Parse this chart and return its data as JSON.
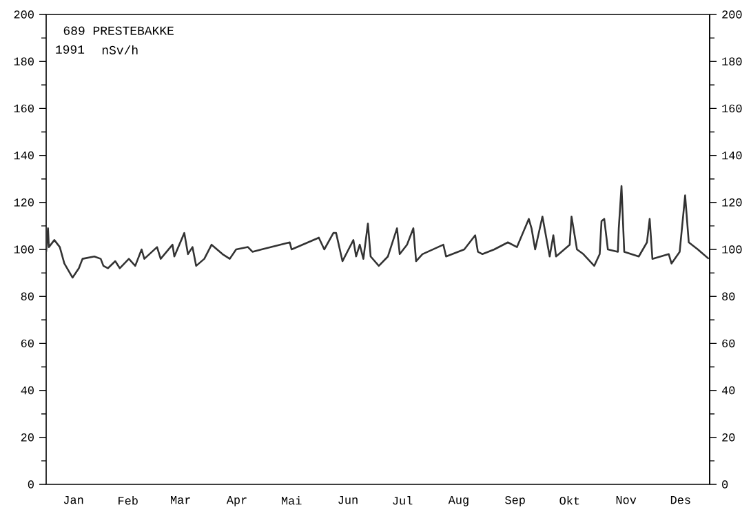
{
  "chart_data": {
    "type": "line",
    "title": "689 PRESTEBAKKE",
    "ylabel": "nSv/h",
    "annotations": [
      "1991"
    ],
    "x": [
      "1991-01-01T00:00",
      "1991-01-02T00:00",
      "1991-01-02T12:00",
      "1991-01-05T12:00",
      "1991-01-08T12:00",
      "1991-01-11T00:00",
      "1991-01-15T12:00",
      "1991-01-19T00:00",
      "1991-01-21T00:00",
      "1991-01-27T12:00",
      "1991-01-31T00:00",
      "1991-02-01T12:00",
      "1991-02-04T00:00",
      "1991-02-08T00:00",
      "1991-02-10T12:00",
      "1991-02-15T12:00",
      "1991-02-19T00:00",
      "1991-02-22T12:00",
      "1991-02-24T00:00",
      "1991-03-03T00:00",
      "1991-03-05T00:00",
      "1991-03-11T12:00",
      "1991-03-12T12:00",
      "1991-03-18T00:00",
      "1991-03-20T00:00",
      "1991-03-22T12:00",
      "1991-03-24T12:00",
      "1991-03-29T00:00",
      "1991-04-02T00:00",
      "1991-04-05T00:00",
      "1991-04-08T00:00",
      "1991-04-12T00:00",
      "1991-04-15T12:00",
      "1991-04-22T00:00",
      "1991-04-24T12:00",
      "1991-04-29T12:00",
      "1991-05-15T00:00",
      "1991-05-16T00:00",
      "1991-05-31T00:00",
      "1991-06-03T00:00",
      "1991-06-08T00:00",
      "1991-06-09T12:00",
      "1991-06-13T00:00",
      "1991-06-19T00:00",
      "1991-06-20T12:00",
      "1991-06-22T12:00",
      "1991-06-24T12:00",
      "1991-06-27T00:00",
      "1991-06-28T12:00",
      "1991-07-03T00:00",
      "1991-07-08T00:00",
      "1991-07-13T00:00",
      "1991-07-14T12:00",
      "1991-07-18T12:00",
      "1991-07-22T00:00",
      "1991-07-23T12:00",
      "1991-07-27T00:00",
      "1991-08-07T12:00",
      "1991-08-09T00:00",
      "1991-08-19T00:00",
      "1991-08-25T00:00",
      "1991-08-26T12:00",
      "1991-08-29T00:00",
      "1991-09-04T12:00",
      "1991-09-12T00:00",
      "1991-09-17T00:00",
      "1991-09-23T12:00",
      "1991-09-25T00:00",
      "1991-09-27T00:00",
      "1991-10-01T00:00",
      "1991-10-05T00:00",
      "1991-10-07T00:00",
      "1991-10-08T12:00",
      "1991-10-16T00:00",
      "1991-10-17T00:00",
      "1991-10-20T00:00",
      "1991-10-23T12:00",
      "1991-10-29T12:00",
      "1991-11-01T12:00",
      "1991-11-02T12:00",
      "1991-11-04T00:00",
      "1991-11-06T00:00",
      "1991-11-11T12:00",
      "1991-11-12T00:00",
      "1991-11-13T12:00",
      "1991-11-15T00:00",
      "1991-11-23T00:00",
      "1991-11-27T12:00",
      "1991-11-29T00:00",
      "1991-11-30T12:00",
      "1991-12-09T12:00",
      "1991-12-11T00:00",
      "1991-12-15T12:00",
      "1991-12-18T12:00",
      "1991-12-20T12:00",
      "1991-12-25T12:00",
      "1991-12-31T12:00"
    ],
    "values": [
      99,
      109,
      101,
      104,
      101,
      94,
      88,
      92,
      96,
      97,
      96,
      93,
      92,
      95,
      92,
      96,
      93,
      100,
      96,
      101,
      96,
      102,
      97,
      107,
      98,
      101,
      93,
      96,
      102,
      100,
      98,
      96,
      100,
      101,
      99,
      100,
      103,
      100,
      105,
      100,
      107,
      107,
      95,
      104,
      97,
      102,
      96,
      111,
      97,
      93,
      97,
      109,
      98,
      102,
      109,
      95,
      98,
      102,
      97,
      100,
      106,
      99,
      98,
      100,
      103,
      101,
      113,
      109,
      100,
      114,
      97,
      106,
      97,
      102,
      114,
      100,
      98,
      93,
      98,
      112,
      113,
      100,
      99,
      109,
      127,
      99,
      97,
      103,
      113,
      96,
      98,
      94,
      99,
      123,
      103,
      100,
      96
    ],
    "color": "#333333",
    "line_style": "solid",
    "marker": "none",
    "grid": false,
    "legend": false,
    "xlim": [
      "1991-01-01",
      "1992-01-01"
    ],
    "xticks": [
      {
        "value": "1991-02-01",
        "label": null
      },
      {
        "value": "1991-03-01",
        "label": null
      },
      {
        "value": "1991-04-01",
        "label": null
      },
      {
        "value": "1991-05-01",
        "label": null
      },
      {
        "value": "1991-06-01",
        "label": null
      },
      {
        "value": "1991-07-01",
        "label": null
      },
      {
        "value": "1991-08-01",
        "label": null
      },
      {
        "value": "1991-09-01",
        "label": null
      },
      {
        "value": "1991-10-01",
        "label": null
      },
      {
        "value": "1991-11-01",
        "label": null
      },
      {
        "value": "1991-12-01",
        "label": null
      },
      {
        "value": "1991-01-16",
        "label": "Jan"
      },
      {
        "value": "1991-02-15",
        "label": "Feb"
      },
      {
        "value": "1991-03-16",
        "label": "Mar"
      },
      {
        "value": "1991-04-16",
        "label": "Apr"
      },
      {
        "value": "1991-05-16",
        "label": "Mai"
      },
      {
        "value": "1991-06-16",
        "label": "Jun"
      },
      {
        "value": "1991-07-16",
        "label": "Jul"
      },
      {
        "value": "1991-08-16",
        "label": "Aug"
      },
      {
        "value": "1991-09-16",
        "label": "Sep"
      },
      {
        "value": "1991-10-16",
        "label": "Okt"
      },
      {
        "value": "1991-11-16",
        "label": "Nov"
      },
      {
        "value": "1991-12-16",
        "label": "Des"
      }
    ],
    "ylim": [
      0,
      200
    ],
    "yticks": [
      0,
      20,
      40,
      60,
      80,
      100,
      120,
      140,
      160,
      180,
      200,
      {
        "value": 10,
        "label": null
      },
      {
        "value": 30,
        "label": null
      },
      {
        "value": 50,
        "label": null
      },
      {
        "value": 70,
        "label": null
      },
      {
        "value": 90,
        "label": null
      },
      {
        "value": 110,
        "label": null
      },
      {
        "value": 130,
        "label": null
      },
      {
        "value": 150,
        "label": null
      },
      {
        "value": 170,
        "label": null
      },
      {
        "value": 190,
        "label": null
      }
    ],
    "y2lim": [
      0,
      200
    ],
    "y2ticks": [
      0,
      20,
      40,
      60,
      80,
      100,
      120,
      140,
      160,
      180,
      200,
      {
        "value": 10,
        "label": null
      },
      {
        "value": 30,
        "label": null
      },
      {
        "value": 50,
        "label": null
      },
      {
        "value": 70,
        "label": null
      },
      {
        "value": 90,
        "label": null
      },
      {
        "value": 110,
        "label": null
      },
      {
        "value": 130,
        "label": null
      },
      {
        "value": 150,
        "label": null
      },
      {
        "value": 170,
        "label": null
      },
      {
        "value": 190,
        "label": null
      }
    ]
  }
}
